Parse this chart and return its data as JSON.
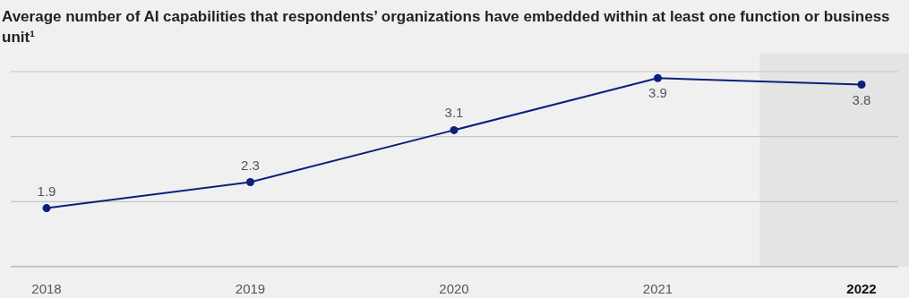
{
  "chart_data": {
    "type": "line",
    "title": "Average number of AI capabilities that respondents’ organizations have embedded within at least one function or business unit¹",
    "categories": [
      "2018",
      "2019",
      "2020",
      "2021",
      "2022"
    ],
    "series": [
      {
        "color": "#0d1f7c",
        "values": [
          1.9,
          2.3,
          3.1,
          3.9,
          3.8
        ]
      }
    ],
    "ylim": [
      1,
      4
    ],
    "yticks": [
      {
        "value": 1,
        "label": null
      },
      {
        "value": 2,
        "label": null
      },
      {
        "value": 3,
        "label": null
      },
      {
        "value": 4,
        "label": null
      }
    ],
    "tick_labels": "x",
    "grid": "y",
    "data_labels": true,
    "marker": "circle",
    "line_style": "solid",
    "bands": [
      {
        "axis": "x",
        "from": "2022",
        "to": "2022",
        "color": "#e4e4e4"
      }
    ]
  }
}
